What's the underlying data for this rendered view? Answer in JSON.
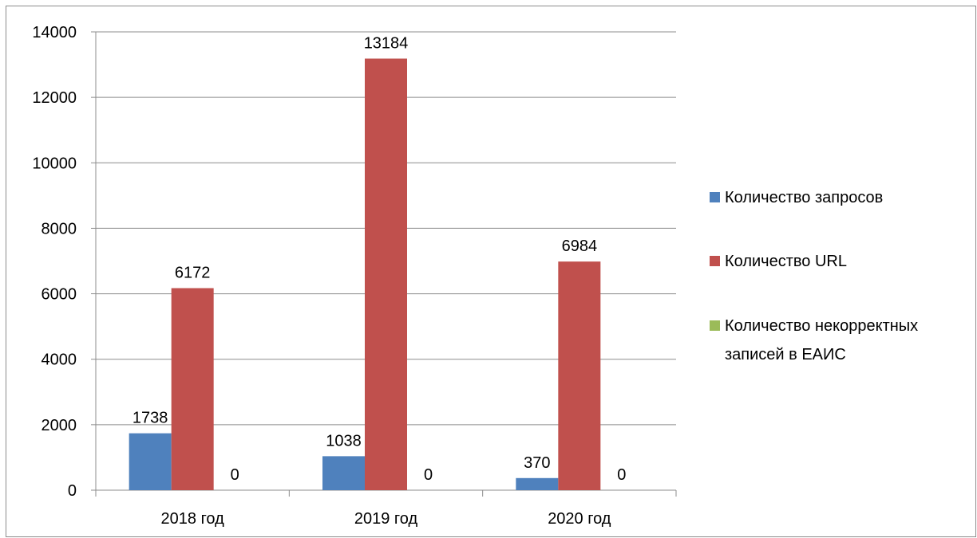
{
  "chart_data": {
    "type": "bar",
    "categories": [
      "2018 год",
      "2019 год",
      "2020 год"
    ],
    "series": [
      {
        "name": "Количество запросов",
        "values": [
          1738,
          1038,
          370
        ],
        "color": "#4F81BD",
        "labels": [
          "1738",
          "1038",
          "370"
        ]
      },
      {
        "name": "Количество URL",
        "values": [
          6172,
          13184,
          6984
        ],
        "color": "#C0504D",
        "labels": [
          "6172",
          "13184",
          "6984"
        ]
      },
      {
        "name": "Количество некорректных записей в ЕАИС",
        "legend_lines": [
          "Количество некорректных",
          "записей в ЕАИС"
        ],
        "values": [
          0,
          0,
          0
        ],
        "color": "#9BBB59",
        "labels": [
          "0",
          "0",
          "0"
        ]
      }
    ],
    "yticks": [
      "0",
      "2000",
      "4000",
      "6000",
      "8000",
      "10000",
      "12000",
      "14000"
    ],
    "ylim": [
      0,
      14000
    ],
    "grid": true,
    "legend_position": "right",
    "title": "",
    "xlabel": "",
    "ylabel": ""
  }
}
